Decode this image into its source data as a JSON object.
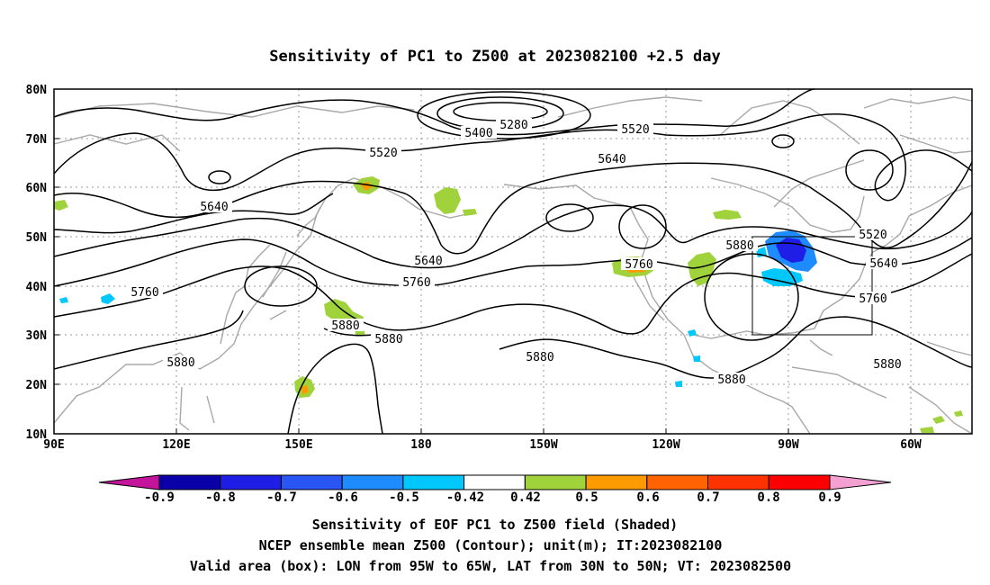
{
  "title": "Sensitivity of PC1 to Z500 at 2023082100 +2.5 day",
  "axes": {
    "lat_labels": [
      "80N",
      "70N",
      "60N",
      "50N",
      "40N",
      "30N",
      "20N",
      "10N"
    ],
    "lon_labels": [
      "90E",
      "120E",
      "150E",
      "180",
      "150W",
      "120W",
      "90W",
      "60W"
    ]
  },
  "contour_labels": [
    "5280",
    "5400",
    "5520",
    "5520",
    "5640",
    "5640",
    "5640",
    "5520",
    "5640",
    "5760",
    "5760",
    "5760",
    "5760",
    "5880",
    "5880",
    "5880",
    "5880",
    "5880",
    "5880",
    "5880"
  ],
  "valid_box": {
    "lon_from": "95W",
    "lon_to": "65W",
    "lat_from": "30N",
    "lat_to": "50N"
  },
  "colorbar": {
    "labels": [
      "-0.9",
      "-0.8",
      "-0.7",
      "-0.6",
      "-0.5",
      "-0.42",
      "0.42",
      "0.5",
      "0.6",
      "0.7",
      "0.8",
      "0.9"
    ],
    "colors": {
      "below_min": "#c4149b",
      "bins": [
        "#0a00a8",
        "#1e1ee6",
        "#2a55f5",
        "#1e8cff",
        "#00c8ff",
        "#ffffff",
        "#a0d23c",
        "#ff9b00",
        "#ff6400",
        "#ff3200",
        "#ff0000"
      ],
      "above_max": "#f5a0d2"
    }
  },
  "captions": [
    "Sensitivity of EOF PC1 to Z500 field (Shaded)",
    "NCEP ensemble mean Z500 (Contour); unit(m); IT:2023082100",
    "Valid area (box): LON from 95W to 65W, LAT from 30N to 50N; VT: 2023082500"
  ],
  "colors": {
    "contour": "#000000",
    "coastline": "#a8a8a8",
    "gridline": "#999999",
    "shade_positive": "#a0d23c",
    "shade_orange": "#ff9b00",
    "shade_negative_light": "#00c8ff",
    "shade_negative_mid": "#1e8cff",
    "shade_negative_dark": "#1e1ee6"
  }
}
